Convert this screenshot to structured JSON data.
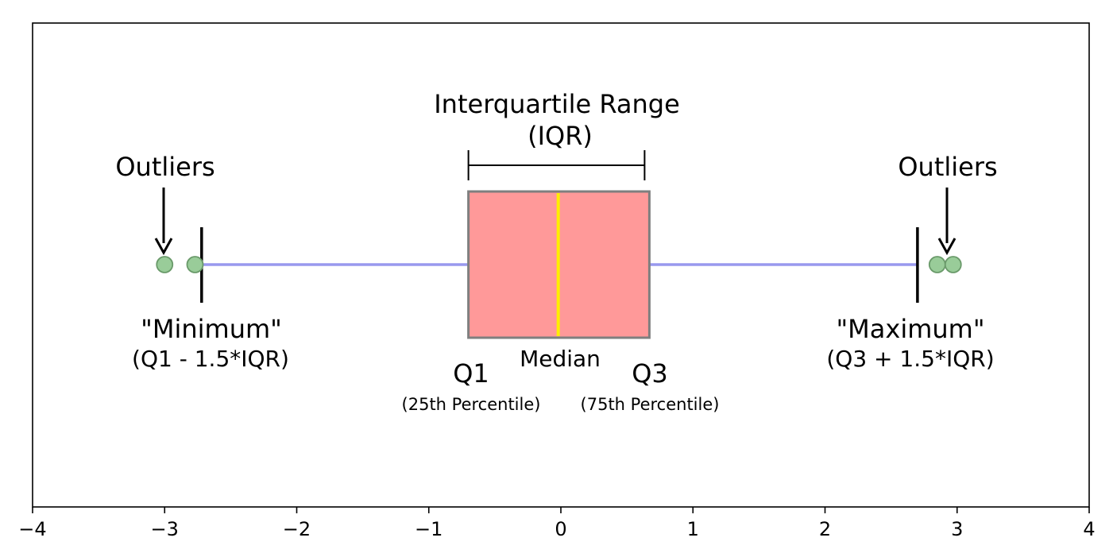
{
  "chart_data": {
    "type": "box",
    "xlim": [
      -4,
      4
    ],
    "x_ticks": [
      -4,
      -3,
      -2,
      -1,
      0,
      1,
      2,
      3,
      4
    ],
    "x_tick_labels": [
      "−4",
      "−3",
      "−2",
      "−1",
      "0",
      "1",
      "2",
      "3",
      "4"
    ],
    "grid": false,
    "box": {
      "q1": -0.7,
      "median": -0.02,
      "q3": 0.67,
      "whisker_low": -2.72,
      "whisker_high": 2.7,
      "outliers": [
        -3.0,
        -2.77,
        2.85,
        2.97
      ]
    },
    "colors": {
      "box_fill": "#ff9999",
      "box_edge": "#7f7f7f",
      "median": "#ffee00",
      "whisker": "#9999ee",
      "outlier_fill": "#99cc99",
      "outlier_edge": "#6a9a6a",
      "axis": "#000000"
    },
    "annotations": {
      "iqr_title": "Interquartile Range",
      "iqr_abbrev": "(IQR)",
      "outliers_left": "Outliers",
      "outliers_right": "Outliers",
      "minimum_title": "\"Minimum\"",
      "minimum_formula": "(Q1 - 1.5*IQR)",
      "maximum_title": "\"Maximum\"",
      "maximum_formula": "(Q3 + 1.5*IQR)",
      "q1": "Q1",
      "q1_desc": "(25th Percentile)",
      "median": "Median",
      "q3": "Q3",
      "q3_desc": "(75th Percentile)"
    }
  }
}
